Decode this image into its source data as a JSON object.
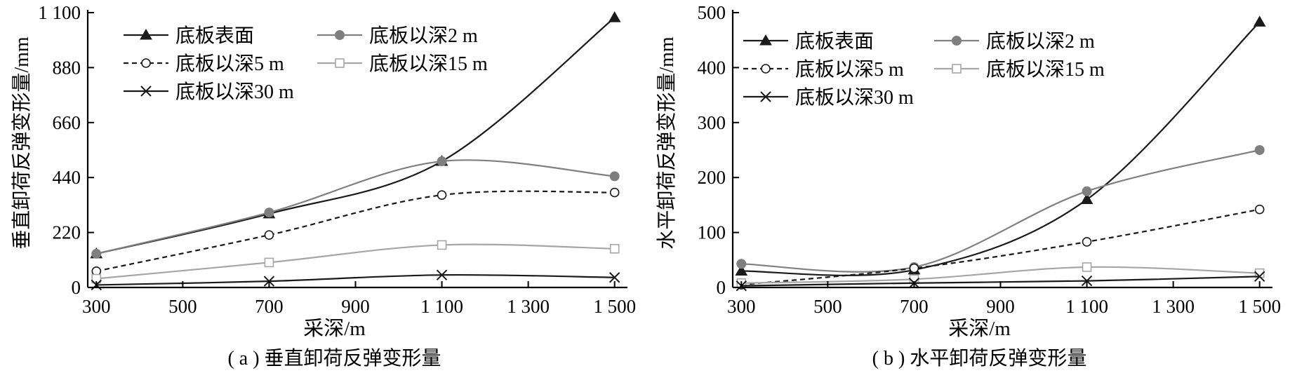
{
  "chart_data": [
    {
      "type": "line",
      "caption": "( a ) 垂直卸荷反弹变形量",
      "xlabel": "采深/m",
      "ylabel": "垂直卸荷反弹变形量/mm",
      "xlim": [
        280,
        1520
      ],
      "ylim": [
        0,
        1100
      ],
      "xticks": [
        300,
        500,
        700,
        900,
        1100,
        1300,
        1500
      ],
      "xtick_labels": [
        "300",
        "500",
        "700",
        "900",
        "1 100",
        "1 300",
        "1 500"
      ],
      "yticks": [
        0,
        220,
        440,
        660,
        880,
        1100
      ],
      "ytick_labels": [
        "0",
        "220",
        "440",
        "660",
        "880",
        "1 100"
      ],
      "legend_position": "top-left",
      "x": [
        300,
        700,
        1100,
        1500
      ],
      "series": [
        {
          "name": "底板表面",
          "values": [
            135,
            295,
            505,
            1080
          ],
          "color": "#1a1a1a",
          "marker": "triangle-filled",
          "dash": "solid"
        },
        {
          "name": "底板以深2 m",
          "values": [
            135,
            300,
            505,
            445
          ],
          "color": "#7f7f7f",
          "marker": "circle-filled",
          "dash": "solid"
        },
        {
          "name": "底板以深5 m",
          "values": [
            65,
            210,
            370,
            380
          ],
          "color": "#1a1a1a",
          "marker": "circle-open",
          "dash": "dashed"
        },
        {
          "name": "底板以深15 m",
          "values": [
            35,
            100,
            170,
            155
          ],
          "color": "#a6a6a6",
          "marker": "square-open",
          "dash": "solid"
        },
        {
          "name": "底板以深30 m",
          "values": [
            10,
            25,
            50,
            40
          ],
          "color": "#1a1a1a",
          "marker": "x",
          "dash": "solid"
        }
      ]
    },
    {
      "type": "line",
      "caption": "( b ) 水平卸荷反弹变形量",
      "xlabel": "采深/m",
      "ylabel": "水平卸荷反弹变形量/mm",
      "xlim": [
        280,
        1520
      ],
      "ylim": [
        0,
        500
      ],
      "xticks": [
        300,
        500,
        700,
        900,
        1100,
        1300,
        1500
      ],
      "xtick_labels": [
        "300",
        "500",
        "700",
        "900",
        "1 100",
        "1 300",
        "1 500"
      ],
      "yticks": [
        0,
        100,
        200,
        300,
        400,
        500
      ],
      "ytick_labels": [
        "0",
        "100",
        "200",
        "300",
        "400",
        "500"
      ],
      "legend_position": "top-left",
      "x": [
        300,
        700,
        1100,
        1500
      ],
      "series": [
        {
          "name": "底板表面",
          "values": [
            30,
            32,
            160,
            483
          ],
          "color": "#1a1a1a",
          "marker": "triangle-filled",
          "dash": "solid"
        },
        {
          "name": "底板以深2 m",
          "values": [
            43,
            37,
            175,
            250
          ],
          "color": "#7f7f7f",
          "marker": "circle-filled",
          "dash": "solid"
        },
        {
          "name": "底板以深5 m",
          "values": [
            5,
            35,
            83,
            142
          ],
          "color": "#1a1a1a",
          "marker": "circle-open",
          "dash": "dashed"
        },
        {
          "name": "底板以深15 m",
          "values": [
            8,
            15,
            37,
            26
          ],
          "color": "#a6a6a6",
          "marker": "square-open",
          "dash": "solid"
        },
        {
          "name": "底板以深30 m",
          "values": [
            3,
            8,
            12,
            20
          ],
          "color": "#1a1a1a",
          "marker": "x",
          "dash": "solid"
        }
      ]
    }
  ]
}
